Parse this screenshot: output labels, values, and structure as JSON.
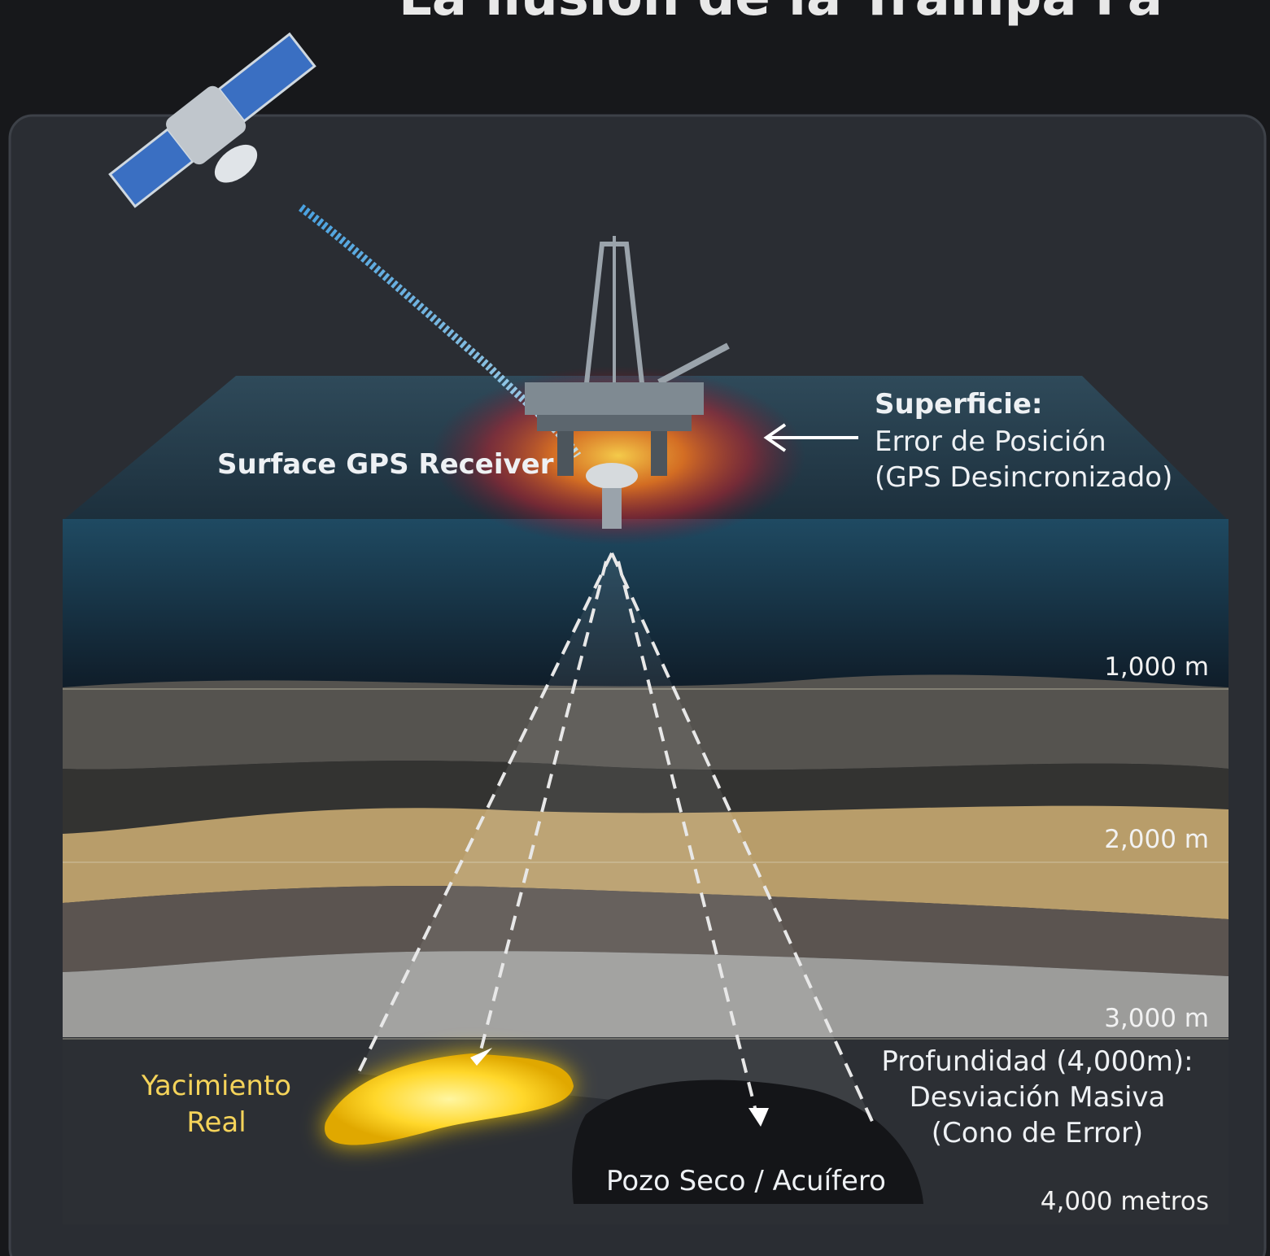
{
  "title": "La ilusión de la Trampa Fa",
  "surface_receiver": "Surface GPS Receiver",
  "surface_note": {
    "heading": "Superficie:",
    "line1": "Error de Posición",
    "line2": "(GPS Desincronizado)"
  },
  "depth_markers": [
    "1,000 m",
    "2,000 m",
    "3,000 m",
    "4,000 metros"
  ],
  "depth_note": {
    "line1": "Profundidad (4,000m):",
    "line2": "Desviación Masiva",
    "line3": "(Cono de Error)"
  },
  "real_reservoir": {
    "line1": "Yacimiento",
    "line2": "Real"
  },
  "dry_well": "Pozo Seco / Acuífero"
}
